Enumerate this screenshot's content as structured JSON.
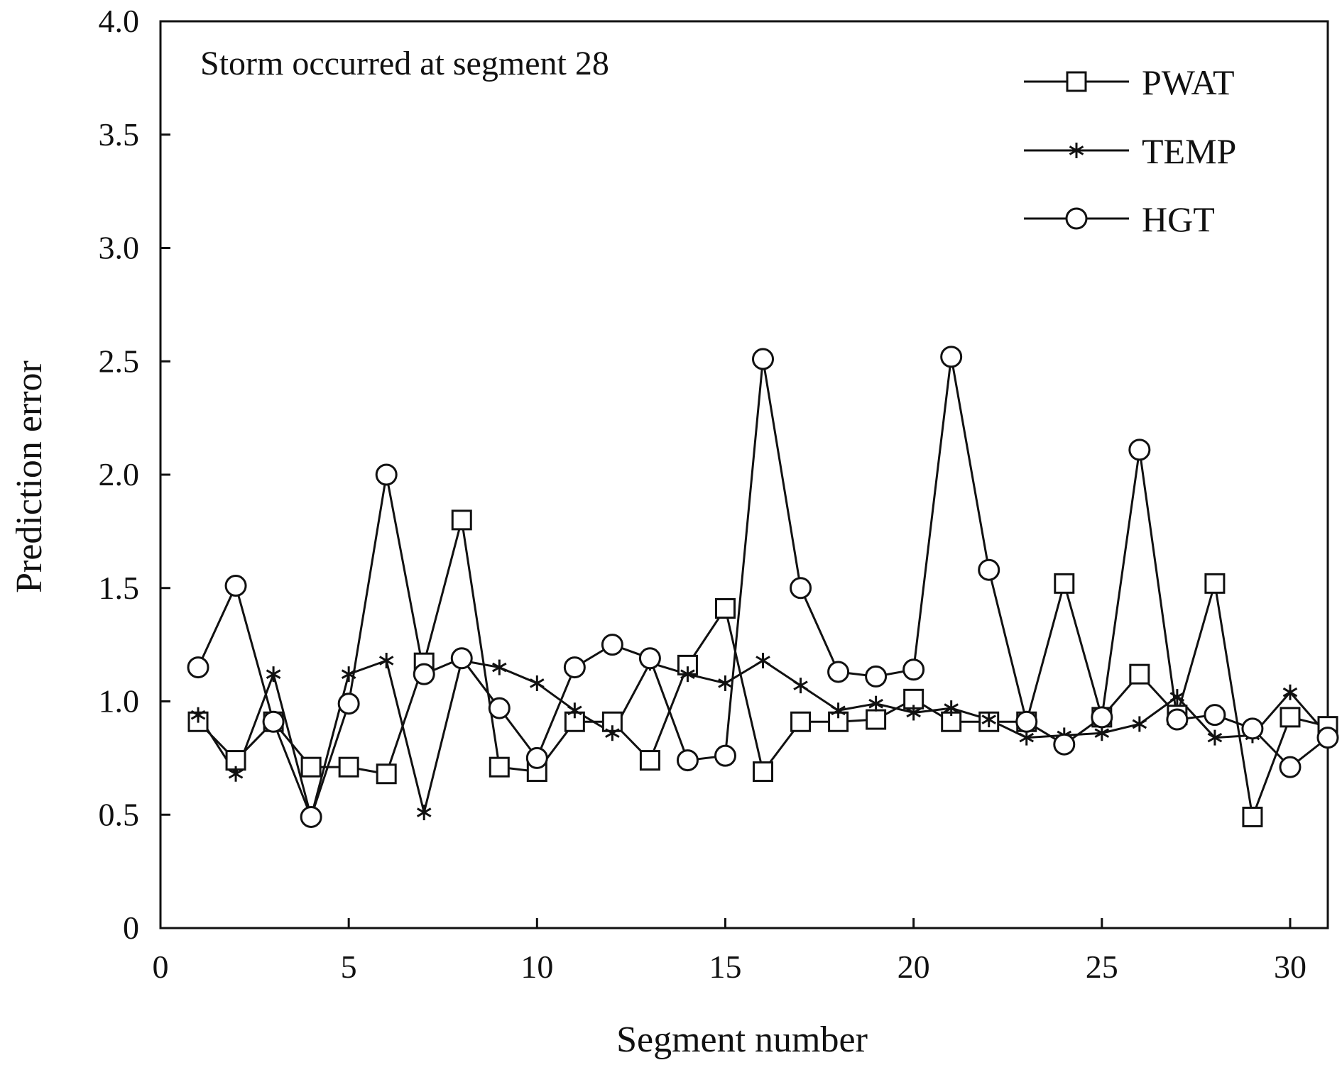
{
  "chart_data": {
    "type": "line",
    "title": "",
    "xlabel": "Segment number",
    "ylabel": "Prediction error",
    "xlim": [
      0,
      31
    ],
    "ylim": [
      0,
      4.0
    ],
    "xticks": [
      "0",
      "5",
      "10",
      "15",
      "20",
      "25",
      "30"
    ],
    "yticks": [
      "0",
      "0.5",
      "1.0",
      "1.5",
      "2.0",
      "2.5",
      "3.0",
      "3.5",
      "4.0"
    ],
    "annotation": "Storm occurred at segment 28",
    "legend_position": "top-right",
    "grid": false,
    "x": [
      1,
      2,
      3,
      4,
      5,
      6,
      7,
      8,
      9,
      10,
      11,
      12,
      13,
      14,
      15,
      16,
      17,
      18,
      19,
      20,
      21,
      22,
      23,
      24,
      25,
      26,
      27,
      28,
      29,
      30,
      31
    ],
    "series": [
      {
        "name": "PWAT",
        "marker": "square",
        "values": [
          0.91,
          0.74,
          0.91,
          0.71,
          0.71,
          0.68,
          1.17,
          1.8,
          0.71,
          0.69,
          0.91,
          0.91,
          0.74,
          1.16,
          1.41,
          0.69,
          0.91,
          0.91,
          0.92,
          1.01,
          0.91,
          0.91,
          0.91,
          1.52,
          0.93,
          1.12,
          0.94,
          1.52,
          0.49,
          0.93,
          0.89
        ]
      },
      {
        "name": "TEMP",
        "marker": "asterisk",
        "values": [
          0.94,
          0.68,
          1.12,
          0.49,
          1.12,
          1.18,
          0.51,
          1.18,
          1.15,
          1.08,
          0.96,
          0.86,
          1.17,
          1.12,
          1.08,
          1.18,
          1.07,
          0.96,
          0.99,
          0.95,
          0.97,
          0.92,
          0.84,
          0.85,
          0.86,
          0.9,
          1.02,
          0.84,
          0.85,
          1.04,
          0.85
        ]
      },
      {
        "name": "HGT",
        "marker": "circle",
        "values": [
          1.15,
          1.51,
          0.91,
          0.49,
          0.99,
          2.0,
          1.12,
          1.19,
          0.97,
          0.75,
          1.15,
          1.25,
          1.19,
          0.74,
          0.76,
          2.51,
          1.5,
          1.13,
          1.11,
          1.14,
          2.52,
          1.58,
          0.91,
          0.81,
          0.93,
          2.11,
          0.92,
          0.94,
          0.88,
          0.71,
          0.84
        ]
      }
    ]
  }
}
